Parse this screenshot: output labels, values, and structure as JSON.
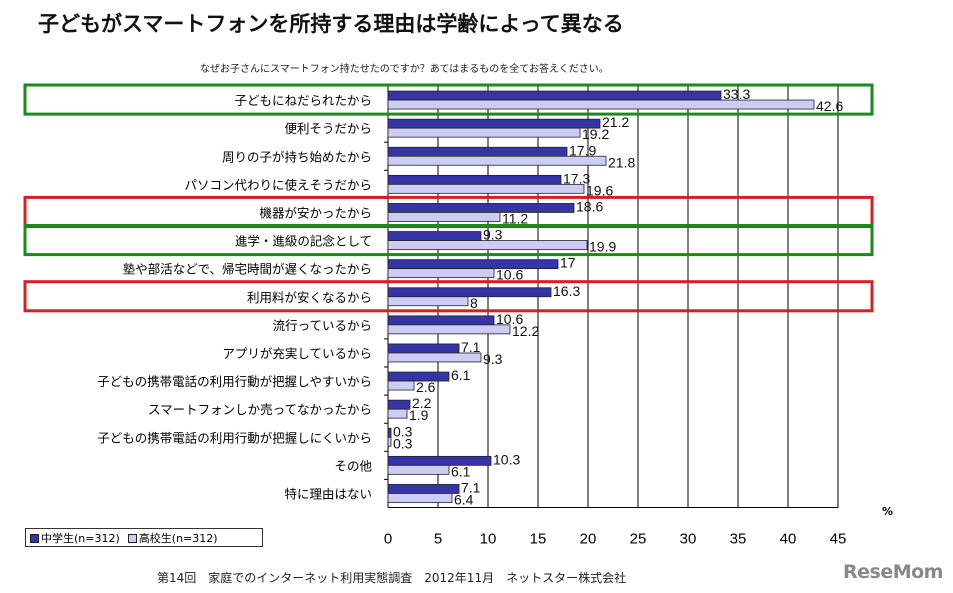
{
  "title": "子どもがスマートフォンを所持する理由は学齢によって異なる",
  "question": "なぜお子さんにスマートフォン持たせたのですか？あてはまるものを全てお答えください。",
  "footer": "第14回　家庭でのインターネット利用実態調査　2012年11月　ネットスター株式会社",
  "logo": "ReseMom",
  "chart_data": {
    "type": "bar",
    "orientation": "horizontal",
    "unit": "%",
    "xlim": [
      0,
      45
    ],
    "ticks": [
      "0",
      "5",
      "10",
      "15",
      "20",
      "25",
      "30",
      "35",
      "40",
      "45"
    ],
    "grid": true,
    "legend_placement": "bottom-left",
    "categories": [
      "子どもにねだられたから",
      "便利そうだから",
      "周りの子が持ち始めたから",
      "パソコン代わりに使えそうだから",
      "機器が安かったから",
      "進学・進級の記念として",
      "塾や部活などで、帰宅時間が遅くなったから",
      "利用料が安くなるから",
      "流行っているから",
      "アプリが充実しているから",
      "子どもの携帯電話の利用行動が把握しやすいから",
      "スマートフォンしか売ってなかったから",
      "子どもの携帯電話の利用行動が把握しにくいから",
      "その他",
      "特に理由はない"
    ],
    "series": [
      {
        "name": "中学生(n=312)",
        "color": "#3535a8",
        "values": [
          33.3,
          21.2,
          17.9,
          17.3,
          18.6,
          9.3,
          17,
          16.3,
          10.6,
          7.1,
          6.1,
          2.2,
          0.3,
          10.3,
          7.1
        ]
      },
      {
        "name": "高校生(n=312)",
        "color": "#ccccf4",
        "values": [
          42.6,
          19.2,
          21.8,
          19.6,
          11.2,
          19.9,
          10.6,
          8,
          12.2,
          9.3,
          2.6,
          1.9,
          0.3,
          6.1,
          6.4
        ]
      }
    ],
    "highlights": [
      {
        "row": 0,
        "color": "#1a8a1a"
      },
      {
        "row": 4,
        "color": "#d42020"
      },
      {
        "row": 5,
        "color": "#1a8a1a"
      },
      {
        "row": 7,
        "color": "#d42020"
      }
    ]
  }
}
